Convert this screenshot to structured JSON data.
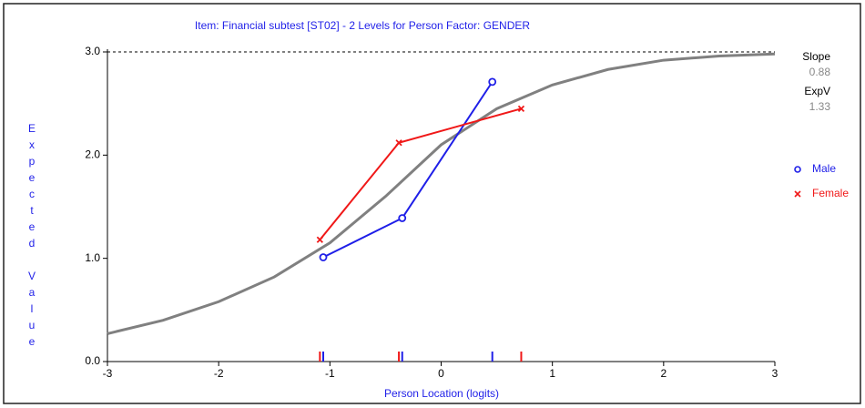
{
  "chart_data": {
    "type": "line",
    "title": "Item: Financial subtest [ST02] - 2 Levels for Person Factor: GENDER",
    "xlabel": "Person Location (logits)",
    "ylabel": "Expected Value",
    "xlim": [
      -3,
      3
    ],
    "xticks": [
      -3,
      -2,
      -1,
      0,
      1,
      2,
      3
    ],
    "ylim": [
      0,
      3
    ],
    "yticks": [
      {
        "value": 0,
        "label": "0.0"
      },
      {
        "value": 1,
        "label": "1.0"
      },
      {
        "value": 2,
        "label": "2.0"
      },
      {
        "value": 3,
        "label": "3.0"
      }
    ],
    "series": [
      {
        "name": "Male",
        "color": "#1f1fe8",
        "marker": "o",
        "x": [
          -1.06,
          -0.35,
          0.46
        ],
        "values": [
          1.01,
          1.39,
          2.71
        ]
      },
      {
        "name": "Female",
        "color": "#f01818",
        "marker": "x",
        "x": [
          -1.09,
          -0.38,
          0.72
        ],
        "values": [
          1.18,
          2.12,
          2.45
        ]
      }
    ],
    "curve": {
      "color": "#808080",
      "x": [
        -3,
        -2.5,
        -2,
        -1.5,
        -1,
        -0.5,
        0,
        0.5,
        1,
        1.5,
        2,
        2.5,
        3
      ],
      "values": [
        0.27,
        0.4,
        0.58,
        0.82,
        1.15,
        1.6,
        2.1,
        2.45,
        2.68,
        2.83,
        2.92,
        2.96,
        2.98
      ]
    },
    "stats": [
      {
        "label": "Slope",
        "value": 0.88
      },
      {
        "label": "ExpV",
        "value": 1.33
      }
    ]
  }
}
